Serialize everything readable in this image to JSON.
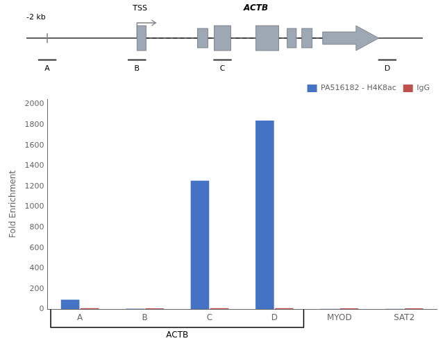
{
  "chart_data": {
    "type": "bar",
    "categories": [
      "A",
      "B",
      "C",
      "D",
      "MYOD",
      "SAT2"
    ],
    "series": [
      {
        "name": "PA516182 - H4K8ac",
        "color": "#4472C4",
        "values": [
          95,
          8,
          1255,
          1840,
          5,
          6
        ]
      },
      {
        "name": "IgG",
        "color": "#C0504D",
        "values": [
          12,
          10,
          12,
          12,
          10,
          10
        ]
      }
    ],
    "ylabel": "Fold Enrichment",
    "ylim": [
      0,
      2050
    ],
    "yticks": [
      0,
      200,
      400,
      600,
      800,
      1000,
      1200,
      1400,
      1600,
      1800,
      2000
    ],
    "grid": false,
    "legend": "upper right",
    "annotations": [
      "-2 kb",
      "TSS",
      "ACTB",
      "A",
      "B",
      "C",
      "D",
      "ACTB"
    ]
  }
}
